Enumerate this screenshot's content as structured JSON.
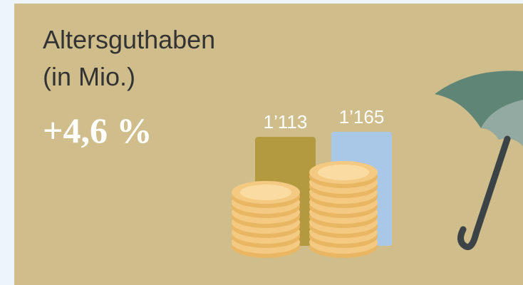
{
  "chart_data": {
    "type": "bar",
    "title": "Altersguthaben",
    "subtitle": "(in Mio.)",
    "annotation": "+4,6 %",
    "categories": [
      null,
      null
    ],
    "series": [
      {
        "name": null,
        "values": [
          1113,
          1165
        ],
        "value_labels": [
          "1’113",
          "1’165"
        ],
        "colors": [
          "#b39a3e",
          "#a9c7e6"
        ]
      }
    ]
  }
}
